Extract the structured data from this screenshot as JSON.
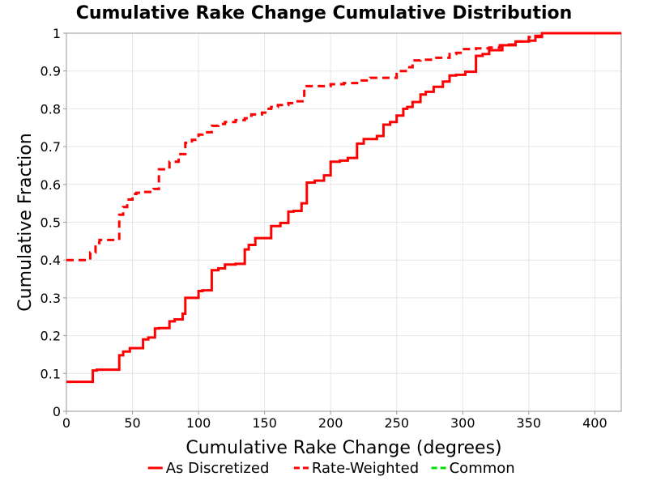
{
  "chart_data": {
    "type": "line",
    "title": "Cumulative Rake Change Cumulative Distribution",
    "xlabel": "Cumulative Rake Change (degrees)",
    "ylabel": "Cumulative Fraction",
    "xlim": [
      0,
      420
    ],
    "ylim": [
      0,
      1
    ],
    "x_ticks": [
      0,
      50,
      100,
      150,
      200,
      250,
      300,
      350,
      400
    ],
    "y_ticks": [
      0,
      0.1,
      0.2,
      0.3,
      0.4,
      0.5,
      0.6,
      0.7,
      0.8,
      0.9,
      1
    ],
    "y_tick_labels": [
      "0",
      "0.1",
      "0.2",
      "0.3",
      "0.4",
      "0.5",
      "0.6",
      "0.7",
      "0.8",
      "0.9",
      "1"
    ],
    "grid": true,
    "legend_position": "bottom",
    "series": [
      {
        "name": "As Discretized",
        "style": "solid",
        "color": "#ff0000",
        "x": [
          0,
          20,
          23,
          40,
          43,
          48,
          58,
          62,
          67,
          70,
          78,
          82,
          88,
          90,
          100,
          103,
          110,
          115,
          120,
          128,
          135,
          138,
          143,
          155,
          162,
          168,
          172,
          178,
          182,
          188,
          195,
          200,
          207,
          213,
          220,
          225,
          235,
          240,
          245,
          250,
          255,
          258,
          262,
          268,
          272,
          278,
          285,
          290,
          295,
          302,
          310,
          315,
          320,
          330,
          340,
          350,
          355,
          360,
          420
        ],
        "y": [
          0.078,
          0.108,
          0.11,
          0.148,
          0.158,
          0.167,
          0.19,
          0.195,
          0.219,
          0.22,
          0.238,
          0.243,
          0.258,
          0.3,
          0.318,
          0.32,
          0.373,
          0.378,
          0.388,
          0.39,
          0.428,
          0.44,
          0.458,
          0.49,
          0.498,
          0.528,
          0.53,
          0.55,
          0.605,
          0.61,
          0.624,
          0.66,
          0.663,
          0.67,
          0.708,
          0.72,
          0.728,
          0.758,
          0.765,
          0.782,
          0.8,
          0.805,
          0.818,
          0.838,
          0.845,
          0.858,
          0.872,
          0.888,
          0.89,
          0.898,
          0.94,
          0.945,
          0.955,
          0.968,
          0.978,
          0.98,
          0.993,
          1.0,
          1.0
        ]
      },
      {
        "name": "Rate-Weighted",
        "style": "dashed",
        "color": "#ff0000",
        "x": [
          0,
          18,
          22,
          25,
          40,
          43,
          46,
          50,
          53,
          58,
          66,
          70,
          75,
          78,
          85,
          90,
          95,
          100,
          103,
          110,
          115,
          120,
          128,
          135,
          140,
          148,
          152,
          155,
          160,
          168,
          172,
          180,
          200,
          210,
          220,
          230,
          250,
          258,
          262,
          268,
          278,
          290,
          295,
          300,
          310,
          320,
          328,
          335,
          340,
          350,
          360,
          420
        ],
        "y": [
          0.4,
          0.42,
          0.445,
          0.453,
          0.52,
          0.54,
          0.56,
          0.575,
          0.578,
          0.58,
          0.588,
          0.64,
          0.645,
          0.66,
          0.68,
          0.71,
          0.718,
          0.732,
          0.738,
          0.755,
          0.76,
          0.765,
          0.77,
          0.775,
          0.785,
          0.79,
          0.8,
          0.805,
          0.81,
          0.815,
          0.82,
          0.86,
          0.865,
          0.868,
          0.875,
          0.882,
          0.9,
          0.91,
          0.928,
          0.93,
          0.935,
          0.945,
          0.948,
          0.958,
          0.96,
          0.962,
          0.968,
          0.97,
          0.978,
          0.99,
          1.0,
          1.0
        ]
      },
      {
        "name": "Common",
        "style": "dashed",
        "color": "#00e000",
        "x": [],
        "y": []
      }
    ]
  }
}
